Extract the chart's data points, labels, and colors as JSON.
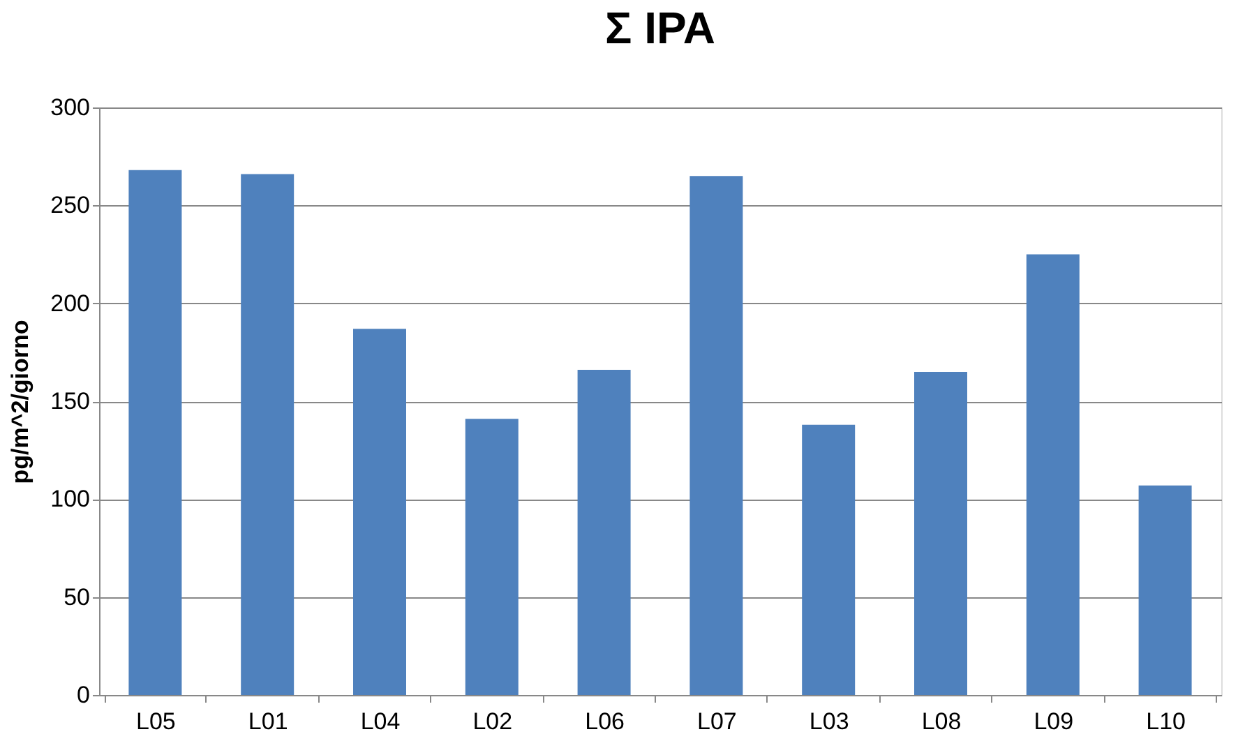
{
  "chart_data": {
    "type": "bar",
    "title": "Σ IPA",
    "ylabel": "pg/m^2/giorno",
    "categories": [
      "L05",
      "L01",
      "L04",
      "L02",
      "L06",
      "L07",
      "L03",
      "L08",
      "L09",
      "L10"
    ],
    "values": [
      268,
      266,
      187,
      141,
      166,
      265,
      138,
      165,
      225,
      107
    ],
    "color": "#4f81bd",
    "ylim": [
      0,
      300
    ],
    "yticks": [
      0,
      50,
      100,
      150,
      200,
      250,
      300
    ],
    "grid": "y"
  }
}
